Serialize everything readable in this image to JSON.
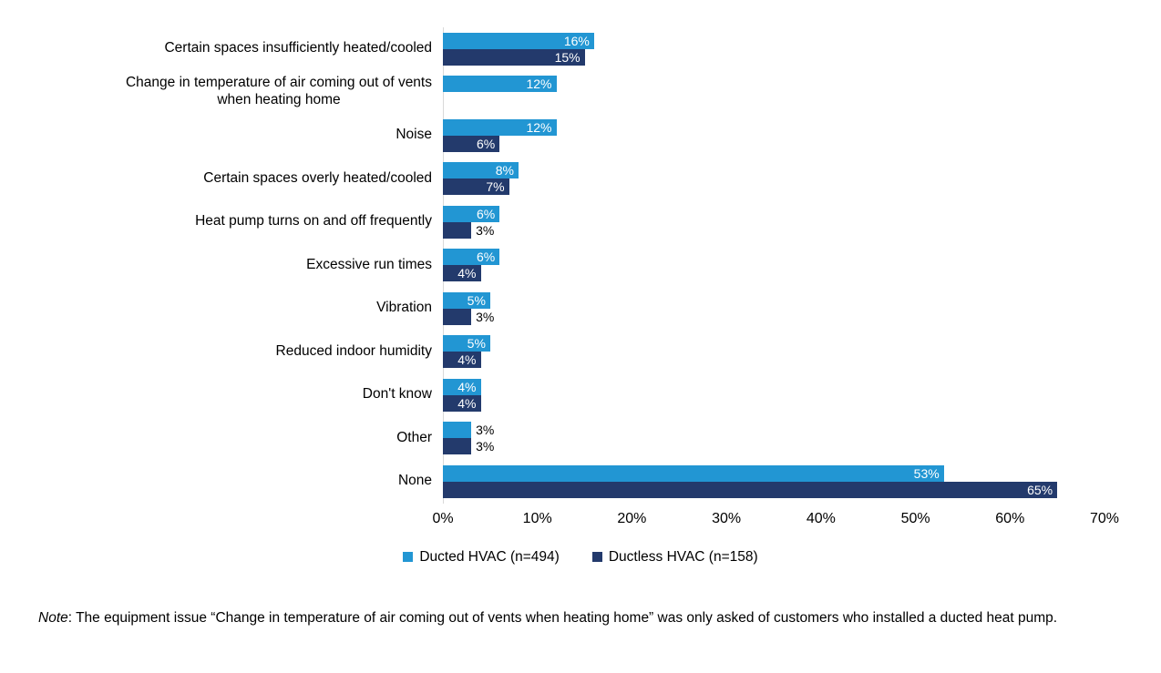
{
  "chart_data": {
    "type": "bar",
    "orientation": "horizontal",
    "title": "",
    "categories": [
      "Certain spaces insufficiently heated/cooled",
      "Change in temperature of air coming out of vents\nwhen heating home",
      "Noise",
      "Certain spaces overly heated/cooled",
      "Heat pump turns on and off frequently",
      "Excessive run times",
      "Vibration",
      "Reduced indoor humidity",
      "Don't know",
      "Other",
      "None"
    ],
    "series": [
      {
        "name": "Ducted HVAC (n=494)",
        "color": "#2296d3",
        "values": [
          16,
          12,
          12,
          8,
          6,
          6,
          5,
          5,
          4,
          3,
          53
        ]
      },
      {
        "name": "Ductless HVAC (n=158)",
        "color": "#233a6c",
        "values": [
          15,
          null,
          6,
          7,
          3,
          4,
          3,
          4,
          4,
          3,
          65
        ]
      }
    ],
    "value_suffix": "%",
    "x_ticks": [
      "0%",
      "10%",
      "20%",
      "30%",
      "40%",
      "50%",
      "60%",
      "70%"
    ],
    "xlim": [
      0,
      70
    ],
    "grid": false,
    "legend_position": "bottom",
    "axis_line_color": "#d9d9d9",
    "data_label_inside_color": "#ffffff",
    "data_label_outside_color": "#000000"
  },
  "note": {
    "prefix": "Note",
    "body": ": The equipment issue “Change in temperature of air coming out of vents when heating home” was only asked of customers who installed a ducted heat pump."
  }
}
